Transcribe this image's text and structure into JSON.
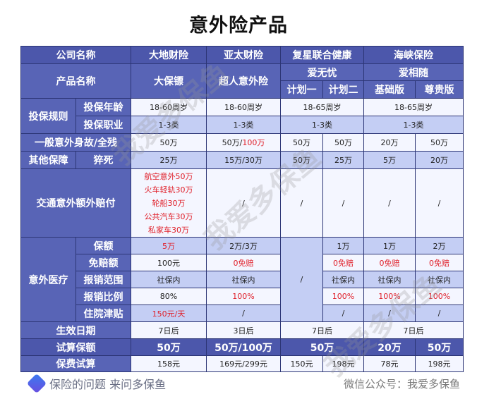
{
  "title": "意外险产品",
  "header": {
    "company_label": "公司名称",
    "companies": [
      "大地财险",
      "亚太财险",
      "复星联合健康",
      "海峡保险"
    ],
    "product_label": "产品名称",
    "products": [
      "大保镖",
      "超人意外险",
      "爱无忧",
      "爱相随"
    ],
    "plans": [
      "计划一",
      "计划二",
      "基础版",
      "尊贵版"
    ]
  },
  "rules": {
    "group": "投保规则",
    "age_label": "投保年龄",
    "age": [
      "18-60周岁",
      "18-60周岁",
      "18-65周岁",
      "18-65周岁"
    ],
    "job_label": "投保职业",
    "job": [
      "1-3类",
      "1-3类",
      "1-3类",
      "1-3类"
    ]
  },
  "general": {
    "label": "一般意外身故/全残",
    "values": [
      "50万",
      "50万/",
      "100万",
      "50万",
      "50万",
      "20万",
      "50万"
    ]
  },
  "other": {
    "group": "其他保障",
    "label": "猝死",
    "values": [
      "25万",
      "15万/30万",
      "50万",
      "25万",
      "5万",
      "20万"
    ]
  },
  "traffic": {
    "label": "交通意外额外赔付",
    "dadi": [
      "航空意外50万",
      "火车轻轨30万",
      "轮船30万",
      "公共汽车30万",
      "私家车30万"
    ],
    "others": [
      "/",
      "/",
      "/",
      "/",
      "/"
    ]
  },
  "medical": {
    "group": "意外医疗",
    "fosun_plan1": "/",
    "rows": [
      {
        "label": "保额",
        "values": [
          "5万",
          "2万/3万",
          "1万",
          "1万",
          "2万"
        ]
      },
      {
        "label": "免赔额",
        "values": [
          "100元",
          "0免赔",
          "0免赔",
          "0免赔",
          "0免赔"
        ]
      },
      {
        "label": "报销范围",
        "values": [
          "社保内",
          "社保内",
          "社保内",
          "社保内",
          "社保内"
        ]
      },
      {
        "label": "报销比例",
        "values": [
          "80%",
          "100%",
          "100%",
          "100%",
          "100%"
        ]
      },
      {
        "label": "住院津贴",
        "values": [
          "150元/天",
          "/",
          "/",
          "/",
          "/"
        ]
      }
    ]
  },
  "effective": {
    "label": "生效日期",
    "values": [
      "7日后",
      "3日后",
      "7日后",
      "7日后"
    ]
  },
  "sum_insured": {
    "label": "试算保额",
    "values": [
      "50万",
      "50万/100万",
      "50万",
      "20万",
      "50万"
    ]
  },
  "premium": {
    "label": "保费试算",
    "values": [
      "158元",
      "169元/299元",
      "150元",
      "198元",
      "78元",
      "198元"
    ]
  },
  "footer": {
    "slogan": "保险的问题 来问多保鱼",
    "wechat": "微信公众号：我爱多保鱼"
  },
  "watermark": "我爱多保鱼",
  "colors": {
    "header": "#4c57ab",
    "label": "#5864b6",
    "band": "#c4cef4",
    "highlight": "#e0202a"
  }
}
